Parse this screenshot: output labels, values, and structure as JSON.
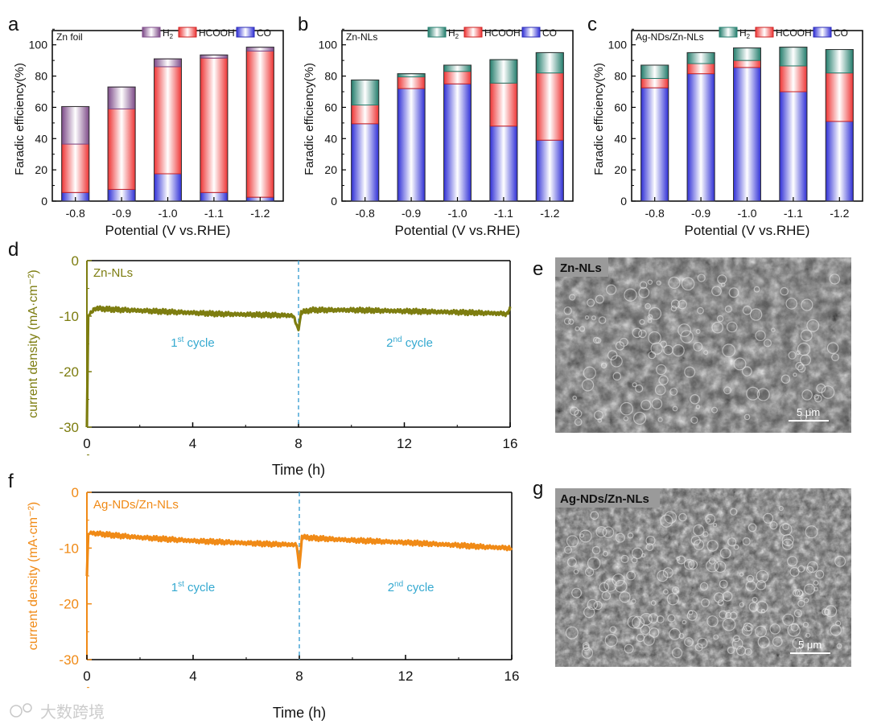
{
  "colors": {
    "h2": "#8e5a96",
    "hcooh": "#ef3b3b",
    "co": "#3b3bdd",
    "h2_green": "#2e8b7a",
    "olive": "#7d7d10",
    "orange": "#f08a16",
    "cycle_text": "#35a9d0",
    "dash": "#4aa6d6"
  },
  "chart_data": [
    {
      "type": "bar",
      "panel": "a",
      "panel_label": "a",
      "legend_title": "Zn foil",
      "categories": [
        "-0.8",
        "-0.9",
        "-1.0",
        "-1.1",
        "-1.2"
      ],
      "series": [
        {
          "name": "CO",
          "values": [
            5.5,
            7.5,
            17.5,
            5.5,
            2.5
          ]
        },
        {
          "name": "HCOOH",
          "values": [
            31,
            51.5,
            68.5,
            86,
            93.5
          ]
        },
        {
          "name": "H2",
          "values": [
            24,
            14,
            5,
            2,
            2.5
          ]
        }
      ],
      "legend": [
        "H2",
        "HCOOH",
        "CO"
      ],
      "xlabel": "Potential (V vs.RHE)",
      "ylabel": "Faradic efficiency(%)",
      "ylim": [
        0,
        105
      ],
      "yticks": [
        "0",
        "20",
        "40",
        "60",
        "80",
        "100"
      ]
    },
    {
      "type": "bar",
      "panel": "b",
      "panel_label": "b",
      "legend_title": "Zn-NLs",
      "categories": [
        "-0.8",
        "-0.9",
        "-1.0",
        "-1.1",
        "-1.2"
      ],
      "series": [
        {
          "name": "CO",
          "values": [
            49.5,
            72,
            75,
            48,
            39
          ]
        },
        {
          "name": "HCOOH",
          "values": [
            12,
            7.5,
            8,
            27.5,
            43
          ]
        },
        {
          "name": "H2",
          "values": [
            16,
            2,
            4,
            15,
            13
          ]
        }
      ],
      "legend": [
        "H2",
        "HCOOH",
        "CO"
      ],
      "xlabel": "Potential (V vs.RHE)",
      "ylabel": "Faradic efficiency(%)",
      "ylim": [
        0,
        105
      ],
      "yticks": [
        "0",
        "20",
        "40",
        "60",
        "80",
        "100"
      ]
    },
    {
      "type": "bar",
      "panel": "c",
      "panel_label": "c",
      "legend_title": "Ag-NDs/Zn-NLs",
      "categories": [
        "-0.8",
        "-0.9",
        "-1.0",
        "-1.1",
        "-1.2"
      ],
      "series": [
        {
          "name": "CO",
          "values": [
            72.5,
            81.5,
            85.5,
            70,
            51
          ]
        },
        {
          "name": "HCOOH",
          "values": [
            6,
            6.5,
            4.5,
            16.5,
            31
          ]
        },
        {
          "name": "H2",
          "values": [
            8.5,
            7,
            8,
            12,
            15
          ]
        }
      ],
      "legend": [
        "H2",
        "HCOOH",
        "CO"
      ],
      "xlabel": "Potential (V vs.RHE)",
      "ylabel": "Faradic efficiency(%)",
      "ylim": [
        0,
        105
      ],
      "yticks": [
        "0",
        "20",
        "40",
        "60",
        "80",
        "100"
      ]
    },
    {
      "type": "line",
      "panel": "d",
      "panel_label": "d",
      "legend_title": "Zn-NLs",
      "xlabel": "Time (h)",
      "ylabel": "current density (mA·cm⁻²)",
      "xlim": [
        0,
        16
      ],
      "ylim": [
        -30,
        0
      ],
      "xticks": [
        "0",
        "4",
        "8",
        "12",
        "16"
      ],
      "yticks": [
        "0",
        "-10",
        "-20",
        "-30"
      ],
      "divider_x": 8,
      "cycle1": {
        "base": "1",
        "sup": "st",
        "rest": " cycle"
      },
      "cycle2": {
        "base": "2",
        "sup": "nd",
        "rest": " cycle"
      },
      "series": [
        {
          "name": "Zn-NLs",
          "x": [
            0,
            0.05,
            0.3,
            1,
            2,
            3,
            4,
            5,
            6,
            7,
            7.8,
            8,
            8.1,
            8.5,
            10,
            12,
            14,
            15.5,
            15.9,
            16
          ],
          "y": [
            -30,
            -10,
            -8.6,
            -8.8,
            -9.0,
            -9.2,
            -9.4,
            -9.6,
            -9.7,
            -9.8,
            -9.9,
            -12.5,
            -9.3,
            -8.9,
            -8.9,
            -9.1,
            -9.3,
            -9.5,
            -9.6,
            -8.3
          ]
        }
      ]
    },
    {
      "type": "line",
      "panel": "f",
      "panel_label": "f",
      "legend_title": "Ag-NDs/Zn-NLs",
      "xlabel": "Time (h)",
      "ylabel": "current density (mA·cm⁻²)",
      "xlim": [
        0,
        16
      ],
      "ylim": [
        -30,
        0
      ],
      "xticks": [
        "0",
        "4",
        "8",
        "12",
        "16"
      ],
      "yticks": [
        "0",
        "-10",
        "-20",
        "-30"
      ],
      "divider_x": 8,
      "cycle1": {
        "base": "1",
        "sup": "st",
        "rest": " cycle"
      },
      "cycle2": {
        "base": "2",
        "sup": "nd",
        "rest": " cycle"
      },
      "series": [
        {
          "name": "Ag-NDs/Zn-NLs",
          "x": [
            0,
            0.05,
            0.2,
            1,
            2,
            3,
            4,
            5,
            6,
            7,
            7.9,
            8,
            8.1,
            8.5,
            10,
            12,
            14,
            15,
            16
          ],
          "y": [
            -15,
            -7.5,
            -7.3,
            -7.7,
            -8.1,
            -8.4,
            -8.7,
            -8.9,
            -9.1,
            -9.3,
            -9.4,
            -13.5,
            -8.0,
            -8.2,
            -8.6,
            -9.0,
            -9.5,
            -9.8,
            -10.0
          ]
        }
      ]
    }
  ],
  "sem": [
    {
      "panel_label": "e",
      "tag": "Zn-NLs",
      "scale": "5 μm"
    },
    {
      "panel_label": "g",
      "tag": "Ag-NDs/Zn-NLs",
      "scale": "5 μm"
    }
  ],
  "watermark": "大数跨境"
}
